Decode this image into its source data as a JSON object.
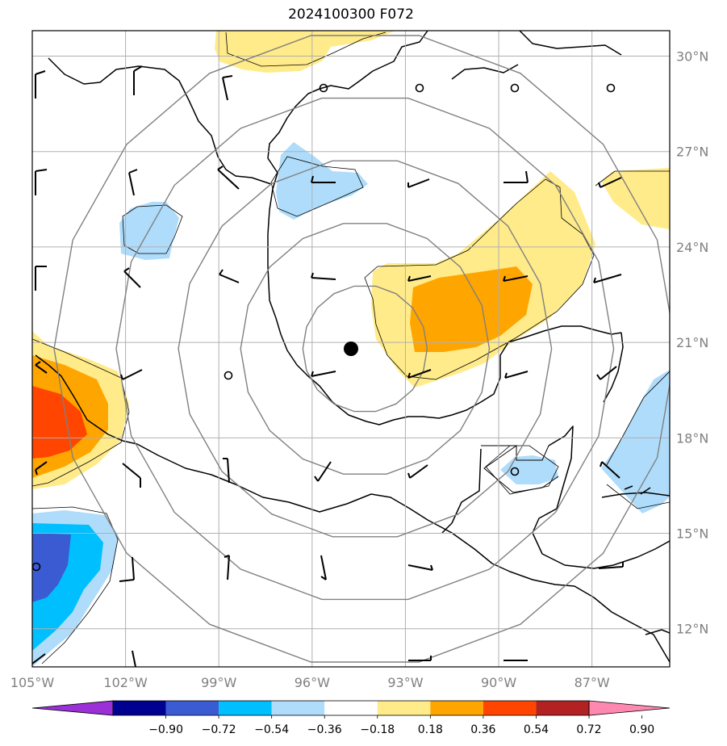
{
  "title": "2024100300 F072",
  "map": {
    "lon_range": [
      -105,
      -84.5
    ],
    "lat_range": [
      10.8,
      30.8
    ],
    "storm_center": {
      "lon": -94.3,
      "lat": 20.8
    },
    "range_rings_deg": [
      2,
      4,
      6,
      8,
      10
    ]
  },
  "axes": {
    "lon_ticks": [
      {
        "value": -105,
        "label": "105°W"
      },
      {
        "value": -102,
        "label": "102°W"
      },
      {
        "value": -99,
        "label": "99°W"
      },
      {
        "value": -96,
        "label": "96°W"
      },
      {
        "value": -93,
        "label": "93°W"
      },
      {
        "value": -90,
        "label": "90°W"
      },
      {
        "value": -87,
        "label": "87°W"
      }
    ],
    "lat_ticks": [
      {
        "value": 30,
        "label": "30°N"
      },
      {
        "value": 27,
        "label": "27°N"
      },
      {
        "value": 24,
        "label": "24°N"
      },
      {
        "value": 21,
        "label": "21°N"
      },
      {
        "value": 18,
        "label": "18°N"
      },
      {
        "value": 15,
        "label": "15°N"
      },
      {
        "value": 12,
        "label": "12°N"
      }
    ]
  },
  "colorbar": {
    "levels": [
      "−0.90",
      "−0.72",
      "−0.54",
      "−0.36",
      "−0.18",
      "0.18",
      "0.36",
      "0.54",
      "0.72",
      "0.90"
    ],
    "colors": [
      "#9b30d8",
      "#000090",
      "#3a5bd2",
      "#00bfff",
      "#afdcfa",
      "#ffffff",
      "#ffeb8a",
      "#ffa500",
      "#ff4500",
      "#b22222",
      "#ff88b0"
    ]
  }
}
